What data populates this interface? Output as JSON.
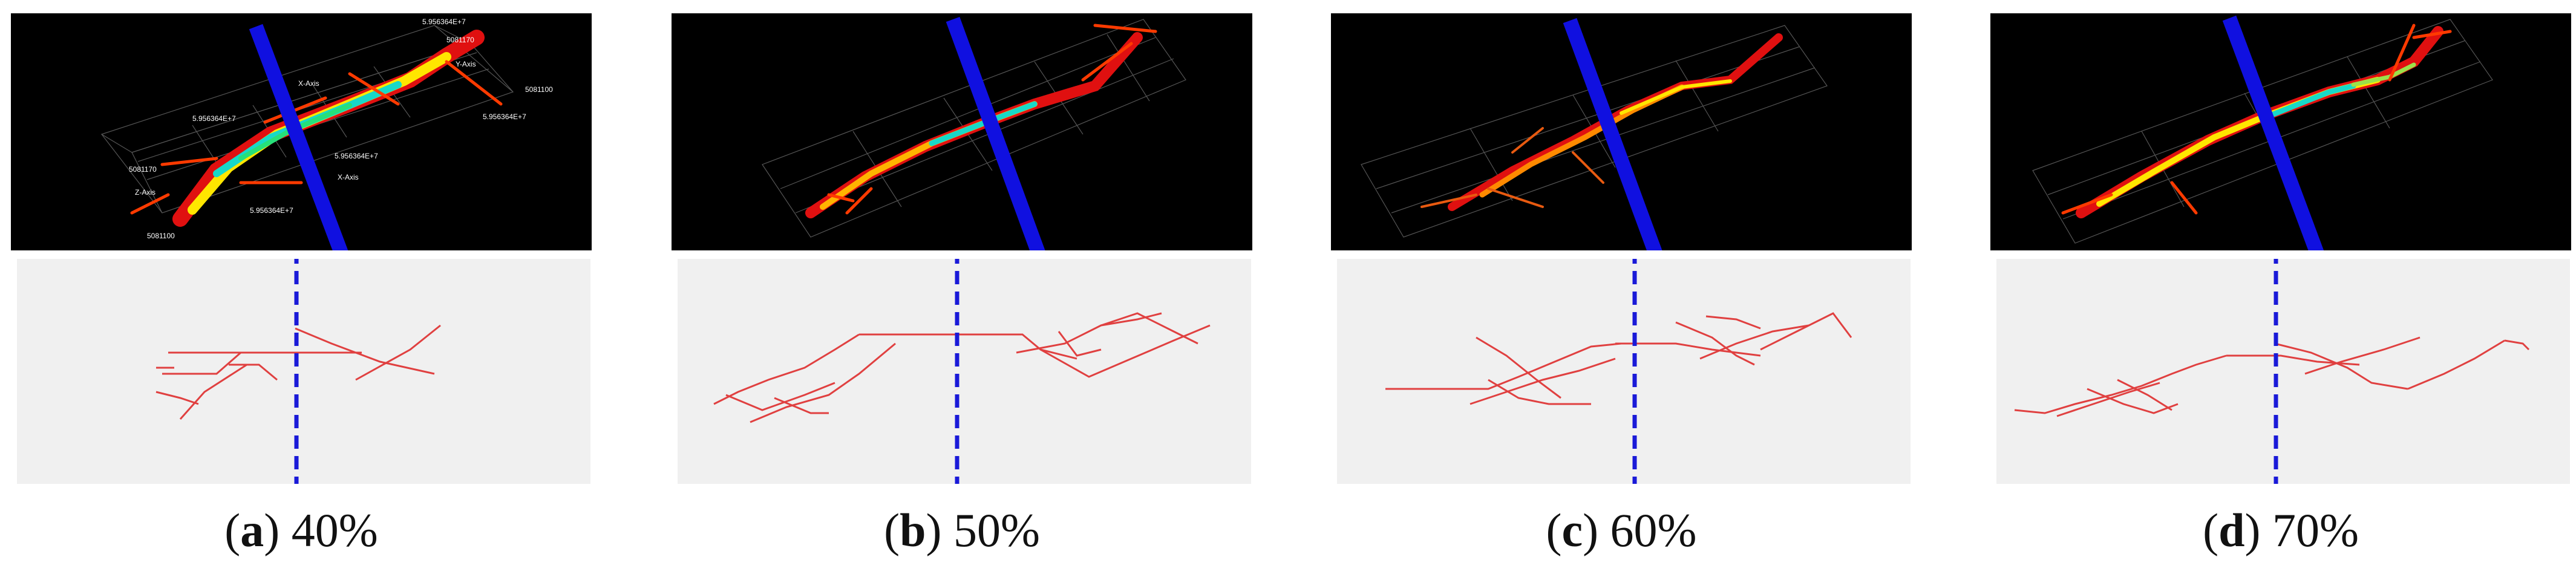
{
  "figure": {
    "panels": [
      {
        "letter": "a",
        "value": "40%",
        "render_labels": [
          "5.956364E+7",
          "5081170",
          "Y-Axis",
          "5081100",
          "X-Axis",
          "5.956364E+7",
          "5.956364E+7",
          "5081170",
          "Z-Axis",
          "5.956364E+7",
          "5.956364E+7",
          "X-Axis",
          "5081100"
        ]
      },
      {
        "letter": "b",
        "value": "50%",
        "render_labels": []
      },
      {
        "letter": "c",
        "value": "60%",
        "render_labels": []
      },
      {
        "letter": "d",
        "value": "70%",
        "render_labels": []
      }
    ]
  },
  "colors": {
    "plane": "#1010e0",
    "divider": "#1a1ad8",
    "fracture_hot": "#e01010",
    "fracture_mid": "#ff8a00",
    "fracture_warm": "#ffe600",
    "fracture_cool": "#18d8c8",
    "schematic_line": "#e04040",
    "schematic_bg": "#f0f0f0"
  }
}
